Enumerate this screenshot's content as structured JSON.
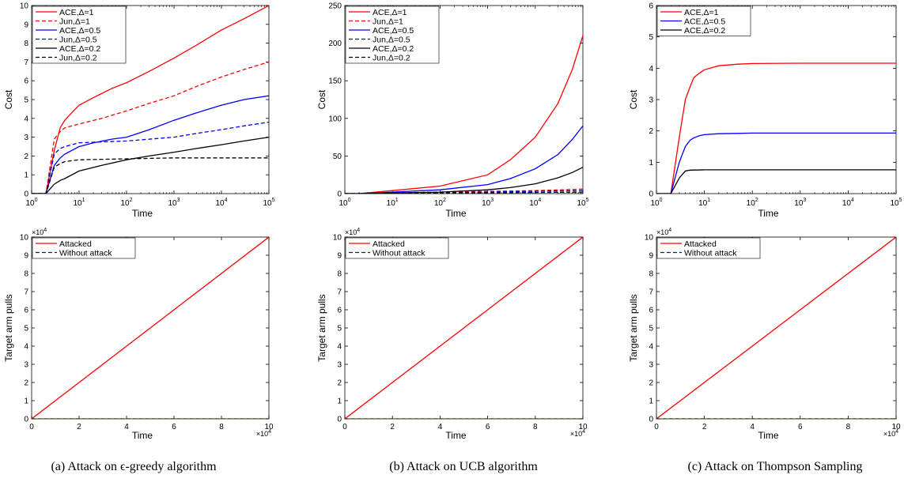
{
  "captions": [
    "(a) Attack on ϵ-greedy algorithm",
    "(b) Attack on UCB algorithm",
    "(c) Attack on Thompson Sampling"
  ],
  "chart_data": [
    {
      "type": "line",
      "panel": "a-top",
      "xscale": "log",
      "xlabel": "Time",
      "ylabel": "Cost",
      "xlim": [
        1,
        100000
      ],
      "ylim": [
        0,
        10
      ],
      "xticks": [
        1,
        10,
        100,
        1000,
        10000,
        100000
      ],
      "xtick_labels": [
        "10^0",
        "10^1",
        "10^2",
        "10^3",
        "10^4",
        "10^5"
      ],
      "yticks": [
        0,
        1,
        2,
        3,
        4,
        5,
        6,
        7,
        8,
        9,
        10
      ],
      "legend_position": "top-left",
      "series": [
        {
          "name": "ACE,Δ=1",
          "color": "#ff0000",
          "dash": "solid",
          "x": [
            1,
            2,
            3,
            4,
            5,
            7,
            10,
            20,
            50,
            100,
            300,
            1000,
            3000,
            10000,
            30000,
            100000
          ],
          "y": [
            0,
            0,
            2.3,
            3.5,
            3.9,
            4.3,
            4.7,
            5.1,
            5.6,
            5.9,
            6.5,
            7.2,
            7.9,
            8.7,
            9.3,
            10.0
          ]
        },
        {
          "name": "Jun,Δ=1",
          "color": "#ff0000",
          "dash": "dashed",
          "x": [
            1,
            2,
            3,
            4,
            5,
            10,
            30,
            100,
            300,
            1000,
            3000,
            10000,
            30000,
            100000
          ],
          "y": [
            0,
            0,
            2.9,
            3.3,
            3.5,
            3.7,
            4.0,
            4.4,
            4.8,
            5.2,
            5.7,
            6.2,
            6.6,
            7.0
          ]
        },
        {
          "name": "ACE,Δ=0.5",
          "color": "#0000ff",
          "dash": "solid",
          "x": [
            1,
            2,
            3,
            4,
            5,
            10,
            20,
            50,
            100,
            300,
            1000,
            3000,
            10000,
            30000,
            100000
          ],
          "y": [
            0,
            0,
            1.5,
            1.9,
            2.1,
            2.5,
            2.7,
            2.9,
            3.0,
            3.4,
            3.9,
            4.3,
            4.7,
            5.0,
            5.2
          ]
        },
        {
          "name": "Jun,Δ=0.5",
          "color": "#0000ff",
          "dash": "dashed",
          "x": [
            1,
            2,
            3,
            4,
            5,
            10,
            100,
            1000,
            3000,
            10000,
            30000,
            100000
          ],
          "y": [
            0,
            0,
            2.1,
            2.4,
            2.5,
            2.7,
            2.8,
            3.0,
            3.2,
            3.4,
            3.6,
            3.8
          ]
        },
        {
          "name": "ACE,Δ=0.2",
          "color": "#000000",
          "dash": "solid",
          "x": [
            1,
            2,
            3,
            4,
            5,
            10,
            30,
            100,
            300,
            1000,
            3000,
            10000,
            30000,
            100000
          ],
          "y": [
            0,
            0,
            0.5,
            0.7,
            0.8,
            1.2,
            1.5,
            1.8,
            2.0,
            2.2,
            2.4,
            2.6,
            2.8,
            3.0
          ]
        },
        {
          "name": "Jun,Δ=0.2",
          "color": "#000000",
          "dash": "dashed",
          "x": [
            1,
            2,
            3,
            4,
            5,
            10,
            100,
            1000,
            10000,
            100000
          ],
          "y": [
            0,
            0,
            1.4,
            1.6,
            1.7,
            1.8,
            1.85,
            1.9,
            1.9,
            1.9
          ]
        }
      ]
    },
    {
      "type": "line",
      "panel": "b-top",
      "xscale": "log",
      "xlabel": "Time",
      "ylabel": "Cost",
      "xlim": [
        1,
        100000
      ],
      "ylim": [
        0,
        250
      ],
      "xticks": [
        1,
        10,
        100,
        1000,
        10000,
        100000
      ],
      "xtick_labels": [
        "10^0",
        "10^1",
        "10^2",
        "10^3",
        "10^4",
        "10^5"
      ],
      "yticks": [
        0,
        50,
        100,
        150,
        200,
        250
      ],
      "legend_position": "top-left",
      "series": [
        {
          "name": "ACE,Δ=1",
          "color": "#ff0000",
          "dash": "solid",
          "x": [
            1,
            2,
            3,
            10,
            100,
            1000,
            3000,
            10000,
            30000,
            60000,
            100000
          ],
          "y": [
            0,
            0,
            1,
            4,
            10,
            25,
            45,
            75,
            120,
            165,
            210
          ]
        },
        {
          "name": "Jun,Δ=1",
          "color": "#ff0000",
          "dash": "dashed",
          "x": [
            1,
            2,
            10,
            100,
            1000,
            10000,
            100000
          ],
          "y": [
            0,
            0,
            1,
            2,
            3,
            4,
            6
          ]
        },
        {
          "name": "ACE,Δ=0.5",
          "color": "#0000ff",
          "dash": "solid",
          "x": [
            1,
            2,
            3,
            10,
            100,
            1000,
            3000,
            10000,
            30000,
            60000,
            100000
          ],
          "y": [
            0,
            0,
            0.5,
            2,
            5,
            12,
            20,
            33,
            52,
            72,
            90
          ]
        },
        {
          "name": "Jun,Δ=0.5",
          "color": "#0000ff",
          "dash": "dashed",
          "x": [
            1,
            2,
            10,
            100,
            1000,
            10000,
            100000
          ],
          "y": [
            0,
            0,
            0.5,
            1,
            2,
            3,
            4
          ]
        },
        {
          "name": "ACE,Δ=0.2",
          "color": "#000000",
          "dash": "solid",
          "x": [
            1,
            2,
            3,
            10,
            100,
            1000,
            3000,
            10000,
            30000,
            60000,
            100000
          ],
          "y": [
            0,
            0,
            0.2,
            0.8,
            2,
            5,
            8,
            13,
            21,
            28,
            35
          ]
        },
        {
          "name": "Jun,Δ=0.2",
          "color": "#000000",
          "dash": "dashed",
          "x": [
            1,
            2,
            10,
            100,
            1000,
            10000,
            100000
          ],
          "y": [
            0,
            0,
            0.3,
            0.6,
            1,
            1.5,
            2
          ]
        }
      ]
    },
    {
      "type": "line",
      "panel": "c-top",
      "xscale": "log",
      "xlabel": "Time",
      "ylabel": "Cost",
      "xlim": [
        1,
        100000
      ],
      "ylim": [
        0,
        6
      ],
      "xticks": [
        1,
        10,
        100,
        1000,
        10000,
        100000
      ],
      "xtick_labels": [
        "10^0",
        "10^1",
        "10^2",
        "10^3",
        "10^4",
        "10^5"
      ],
      "yticks": [
        0,
        1,
        2,
        3,
        4,
        5,
        6
      ],
      "legend_position": "top-left",
      "series": [
        {
          "name": "ACE,Δ=1",
          "color": "#ff0000",
          "dash": "solid",
          "x": [
            1,
            2,
            3,
            4,
            5,
            6,
            8,
            10,
            20,
            50,
            100,
            1000,
            100000
          ],
          "y": [
            0,
            0,
            1.8,
            3.0,
            3.4,
            3.7,
            3.85,
            3.95,
            4.08,
            4.13,
            4.15,
            4.16,
            4.16
          ]
        },
        {
          "name": "ACE,Δ=0.5",
          "color": "#0000ff",
          "dash": "solid",
          "x": [
            1,
            2,
            3,
            4,
            5,
            6,
            8,
            10,
            20,
            50,
            100,
            100000
          ],
          "y": [
            0,
            0,
            1.0,
            1.5,
            1.7,
            1.78,
            1.85,
            1.88,
            1.91,
            1.92,
            1.93,
            1.93
          ]
        },
        {
          "name": "ACE,Δ=0.2",
          "color": "#000000",
          "dash": "solid",
          "x": [
            1,
            2,
            3,
            4,
            5,
            10,
            100,
            100000
          ],
          "y": [
            0,
            0,
            0.5,
            0.72,
            0.75,
            0.76,
            0.76,
            0.76
          ]
        }
      ]
    },
    {
      "type": "line",
      "panel": "a-bottom",
      "xscale": "linear",
      "xlabel": "Time",
      "ylabel": "Target arm pulls",
      "xlim": [
        0,
        100000
      ],
      "ylim": [
        0,
        100000
      ],
      "xticks": [
        0,
        20000,
        40000,
        60000,
        80000,
        100000
      ],
      "xtick_labels": [
        "0",
        "2",
        "4",
        "6",
        "8",
        "10"
      ],
      "yticks": [
        0,
        10000,
        20000,
        30000,
        40000,
        50000,
        60000,
        70000,
        80000,
        90000,
        100000
      ],
      "ytick_labels": [
        "0",
        "1",
        "2",
        "3",
        "4",
        "5",
        "6",
        "7",
        "8",
        "9",
        "10"
      ],
      "x_exponent": "×10",
      "y_exponent": "×10",
      "exponent_power": "4",
      "legend_position": "top-left",
      "series": [
        {
          "name": "Attacked",
          "color": "#ff0000",
          "dash": "solid",
          "x": [
            0,
            100000
          ],
          "y": [
            0,
            100000
          ]
        },
        {
          "name": "Without attack",
          "color": "#0000ff",
          "dash": "dashed",
          "x": [
            0,
            100000
          ],
          "y": [
            0,
            0
          ]
        }
      ]
    },
    {
      "type": "line",
      "panel": "b-bottom",
      "xscale": "linear",
      "xlabel": "Time",
      "ylabel": "Target arm pulls",
      "xlim": [
        0,
        100000
      ],
      "ylim": [
        0,
        100000
      ],
      "xticks": [
        0,
        20000,
        40000,
        60000,
        80000,
        100000
      ],
      "xtick_labels": [
        "0",
        "2",
        "4",
        "6",
        "8",
        "10"
      ],
      "yticks": [
        0,
        10000,
        20000,
        30000,
        40000,
        50000,
        60000,
        70000,
        80000,
        90000,
        100000
      ],
      "ytick_labels": [
        "0",
        "1",
        "2",
        "3",
        "4",
        "5",
        "6",
        "7",
        "8",
        "9",
        "10"
      ],
      "x_exponent": "×10",
      "y_exponent": "×10",
      "exponent_power": "4",
      "legend_position": "top-left",
      "series": [
        {
          "name": "Attacked",
          "color": "#ff0000",
          "dash": "solid",
          "x": [
            0,
            100000
          ],
          "y": [
            0,
            100000
          ]
        },
        {
          "name": "Without attack",
          "color": "#0000ff",
          "dash": "dashed",
          "x": [
            0,
            100000
          ],
          "y": [
            0,
            0
          ]
        }
      ]
    },
    {
      "type": "line",
      "panel": "c-bottom",
      "xscale": "linear",
      "xlabel": "Time",
      "ylabel": "Target arm pulls",
      "xlim": [
        0,
        100000
      ],
      "ylim": [
        0,
        100000
      ],
      "xticks": [
        0,
        20000,
        40000,
        60000,
        80000,
        100000
      ],
      "xtick_labels": [
        "0",
        "2",
        "4",
        "6",
        "8",
        "10"
      ],
      "yticks": [
        0,
        10000,
        20000,
        30000,
        40000,
        50000,
        60000,
        70000,
        80000,
        90000,
        100000
      ],
      "ytick_labels": [
        "0",
        "1",
        "2",
        "3",
        "4",
        "5",
        "6",
        "7",
        "8",
        "9",
        "10"
      ],
      "x_exponent": "×10",
      "y_exponent": "×10",
      "exponent_power": "4",
      "legend_position": "top-left",
      "series": [
        {
          "name": "Attacked",
          "color": "#ff0000",
          "dash": "solid",
          "x": [
            0,
            100000
          ],
          "y": [
            0,
            100000
          ]
        },
        {
          "name": "Without attack",
          "color": "#0000ff",
          "dash": "dashed",
          "x": [
            0,
            100000
          ],
          "y": [
            0,
            0
          ]
        }
      ]
    }
  ]
}
